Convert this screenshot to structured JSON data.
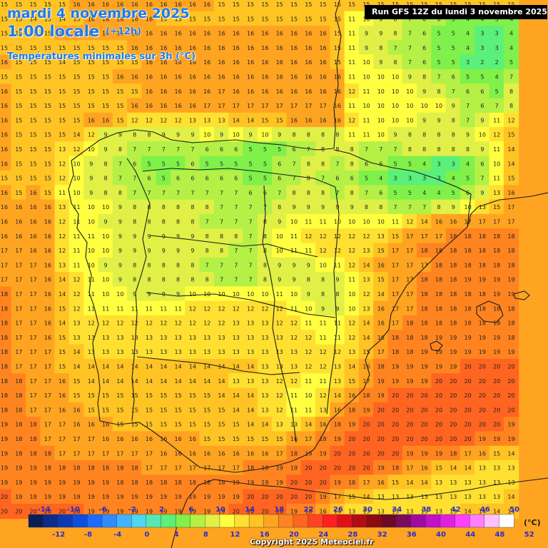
{
  "header": {
    "date_line": "mardi 4 novembre 2025",
    "time_line": "1:00 locale",
    "step_line": "(+12h)",
    "variable_line": "Températures minimales sur 3h (°C)"
  },
  "run_info": "Run GFS 12Z du lundi 3 novembre 2025",
  "copyright": "Copyright 2025 Meteociel.fr",
  "legend": {
    "unit": "(°C)",
    "top_labels": [
      "-14",
      "-10",
      "-6",
      "-2",
      "2",
      "6",
      "10",
      "14",
      "18",
      "22",
      "26",
      "30",
      "34",
      "38",
      "42",
      "46",
      "50"
    ],
    "bottom_labels": [
      "-12",
      "-8",
      "-4",
      "0",
      "4",
      "8",
      "12",
      "16",
      "20",
      "24",
      "28",
      "32",
      "36",
      "40",
      "44",
      "48",
      "52"
    ],
    "colors": [
      "#0a1e5a",
      "#0b2c8a",
      "#0a3ab4",
      "#0b4fe0",
      "#1b6bff",
      "#2e8cff",
      "#42b4ff",
      "#4fd6f0",
      "#55e8b4",
      "#5af07a",
      "#80f04a",
      "#b4f046",
      "#e0f046",
      "#ffff40",
      "#ffe030",
      "#ffc424",
      "#ffa420",
      "#ff8420",
      "#ff6420",
      "#ff4424",
      "#ff2020",
      "#e01018",
      "#b40c14",
      "#8c0a10",
      "#6a0a28",
      "#7a0a60",
      "#a00aa0",
      "#c010c8",
      "#e020e0",
      "#ff40ff",
      "#ff80ff",
      "#ffc0ff",
      "#ffffff"
    ]
  },
  "map": {
    "rows": [
      "15 15 15 15 15 16 16 16 16 16 16 16 16 16 16 15 15 15 15 15 15 15 15 15 15 15 15 15 15 15 15 15 15 15 15 15",
      "15 15 14 15 14 15 16 16 16 16 16 15 15 15 15 15 15 15 15 15 15 15 15 15 11 10 9 8 7 6 6 5 4 4 5 4",
      "15 15 15 15 16 16 16 16 16 16 16 16 16 16 16 16 16 16 16 16 16 16 16 15 11 9 9 8 7 6 5 5 4 3 3 4",
      "15 15 15 15 15 15 15 15 15 16 16 16 16 16 16 16 16 16 16 16 16 16 16 15 11 9 8 7 7 6 5 5 4 3 3 4",
      "16 15 15 15 14 15 15 15 15 15 16 16 16 16 16 16 16 16 16 16 16 16 16 15 11 10 9 8 7 6 5 5 3 2 2 5",
      "15 15 15 15 15 15 15 15 16 16 16 16 16 16 16 16 16 16 16 16 16 16 16 16 11 10 10 10 9 8 7 6 5 5 4 7",
      "16 15 15 15 15 15 15 15 15 15 16 16 16 16 16 17 16 16 16 16 16 16 16 16 12 11 10 10 10 9 8 7 6 6 5 8",
      "16 15 15 15 15 15 15 15 15 16 16 16 16 16 17 17 17 17 17 17 17 17 17 16 11 10 10 10 10 10 10 9 7 6 7 8",
      "16 15 15 15 15 15 16 16 15 12 12 12 12 13 13 13 14 14 15 15 16 16 16 16 12 11 10 10 10 9 9 8 7 9 11 12",
      "16 15 15 15 15 14 12 9 9 8 8 9 9 9 10 9 10 9 10 9 8 8 8 8 11 11 10 9 8 8 8 8 9 10 12 15",
      "16 15 15 15 13 12 10 9 8 7 7 7 7 7 6 6 6 5 5 5 6 7 8 8 8 7 7 7 8 8 8 8 8 9 11 14",
      "16 15 15 15 12 10 9 8 7 6 5 5 5 6 5 5 5 5 5 6 7 8 8 7 8 6 6 5 5 4 3 3 4 6 10 14",
      "15 15 15 15 12 10 9 8 7 7 6 5 6 6 6 6 6 5 5 6 7 8 7 6 6 5 4 3 3 3 3 4 5 7 11 15",
      "16 15 16 15 11 10 9 8 8 7 7 7 7 7 7 7 7 6 6 7 8 8 8 7 8 7 6 5 5 4 4 5 6 9 13 16",
      "16 16 16 16 13 11 10 10 9 8 8 8 8 8 8 7 7 7 7 8 9 9 9 9 9 8 8 7 7 7 8 9 10 13 15 17",
      "16 16 16 16 12 11 10 9 9 8 8 8 8 8 7 7 7 7 8 9 10 11 11 10 10 10 10 11 12 14 16 16 17 17 17 17",
      "16 16 16 16 12 11 11 10 9 9 9 9 9 9 8 8 8 7 8 10 11 12 12 12 12 12 13 15 17 17 17 18 18 18 18 18",
      "17 17 16 16 12 11 10 10 9 9 9 9 9 9 8 8 7 7 8 10 11 11 12 12 12 13 15 17 17 18 18 18 18 18 18 18",
      "17 17 17 16 13 11 10 9 9 8 8 8 8 8 7 7 7 7 8 9 9 9 10 11 12 14 16 17 17 17 18 18 18 18 18 18",
      "17 17 17 16 14 12 11 10 9 8 8 8 8 8 8 7 7 7 8 9 9 8 8 9 11 13 15 17 17 18 18 18 19 19 19 19",
      "18 17 17 16 14 12 11 10 10 9 9 9 9 10 10 10 10 10 10 11 10 9 8 8 10 12 14 17 17 18 18 18 18 18 19 19",
      "18 17 17 16 15 12 11 11 11 11 11 11 11 12 12 12 12 12 12 12 11 10 9 9 10 13 16 17 17 18 18 18 18 18 18 18",
      "18 17 17 16 14 13 12 12 12 12 12 12 12 12 12 12 13 13 13 12 12 11 11 11 12 14 16 17 18 18 18 18 18 18 18 18",
      "18 17 17 16 15 13 13 13 13 13 13 13 13 13 13 13 13 13 13 13 12 12 11 11 12 14 16 18 18 18 19 19 19 19 19 18",
      "18 17 17 17 15 14 13 13 13 13 13 13 13 13 13 13 13 13 13 13 13 12 12 12 13 15 17 18 18 19 19 19 19 19 19 19",
      "18 17 17 17 15 14 14 14 14 14 14 14 14 14 14 14 14 14 13 13 13 12 12 13 14 16 18 19 19 19 19 19 20 20 20 20",
      "18 18 17 17 16 15 14 14 14 14 14 14 14 14 14 14 13 13 13 12 12 11 11 13 15 17 19 19 19 19 20 20 20 20 20 20",
      "18 18 17 17 16 15 15 15 15 15 15 15 15 15 15 14 14 14 13 12 11 10 12 14 16 18 19 20 20 20 20 20 20 20 20 20",
      "18 18 17 17 16 16 15 15 15 15 15 15 15 15 15 15 14 14 13 12 11 11 13 16 18 19 20 20 20 20 20 20 20 20 20 20",
      "19 18 18 17 17 16 16 16 15 15 15 15 15 15 15 15 15 14 14 13 13 14 16 18 19 20 20 20 20 20 20 20 20 20 20 19",
      "19 18 18 17 17 17 17 16 16 16 16 16 16 16 15 15 15 15 15 15 16 17 18 19 20 20 20 20 20 20 20 20 20 19 19 19",
      "19 18 18 18 17 17 17 17 17 17 17 16 16 16 16 16 16 16 16 17 18 19 19 20 20 20 20 20 19 19 19 18 17 16 15 14",
      "19 19 19 18 18 18 18 18 18 18 17 17 17 17 17 17 17 18 18 19 19 20 20 20 20 20 19 18 17 16 15 14 14 13 13 13",
      "19 19 19 19 19 19 19 19 18 18 18 18 18 18 18 18 19 19 19 19 20 20 20 19 18 17 16 15 14 14 13 13 13 13 13 13",
      "20 19 19 19 19 19 19 19 19 19 19 19 19 19 19 19 19 20 20 20 20 20 19 17 15 14 13 13 13 13 13 13 13 13 13 14",
      "20 20 20 20 20 20 19 19 19 19 19 19 19 19 19 19 20 20 20 20 19 18 16 14 13 13 13 13 13 13 13 13 14 14 14 14"
    ]
  }
}
